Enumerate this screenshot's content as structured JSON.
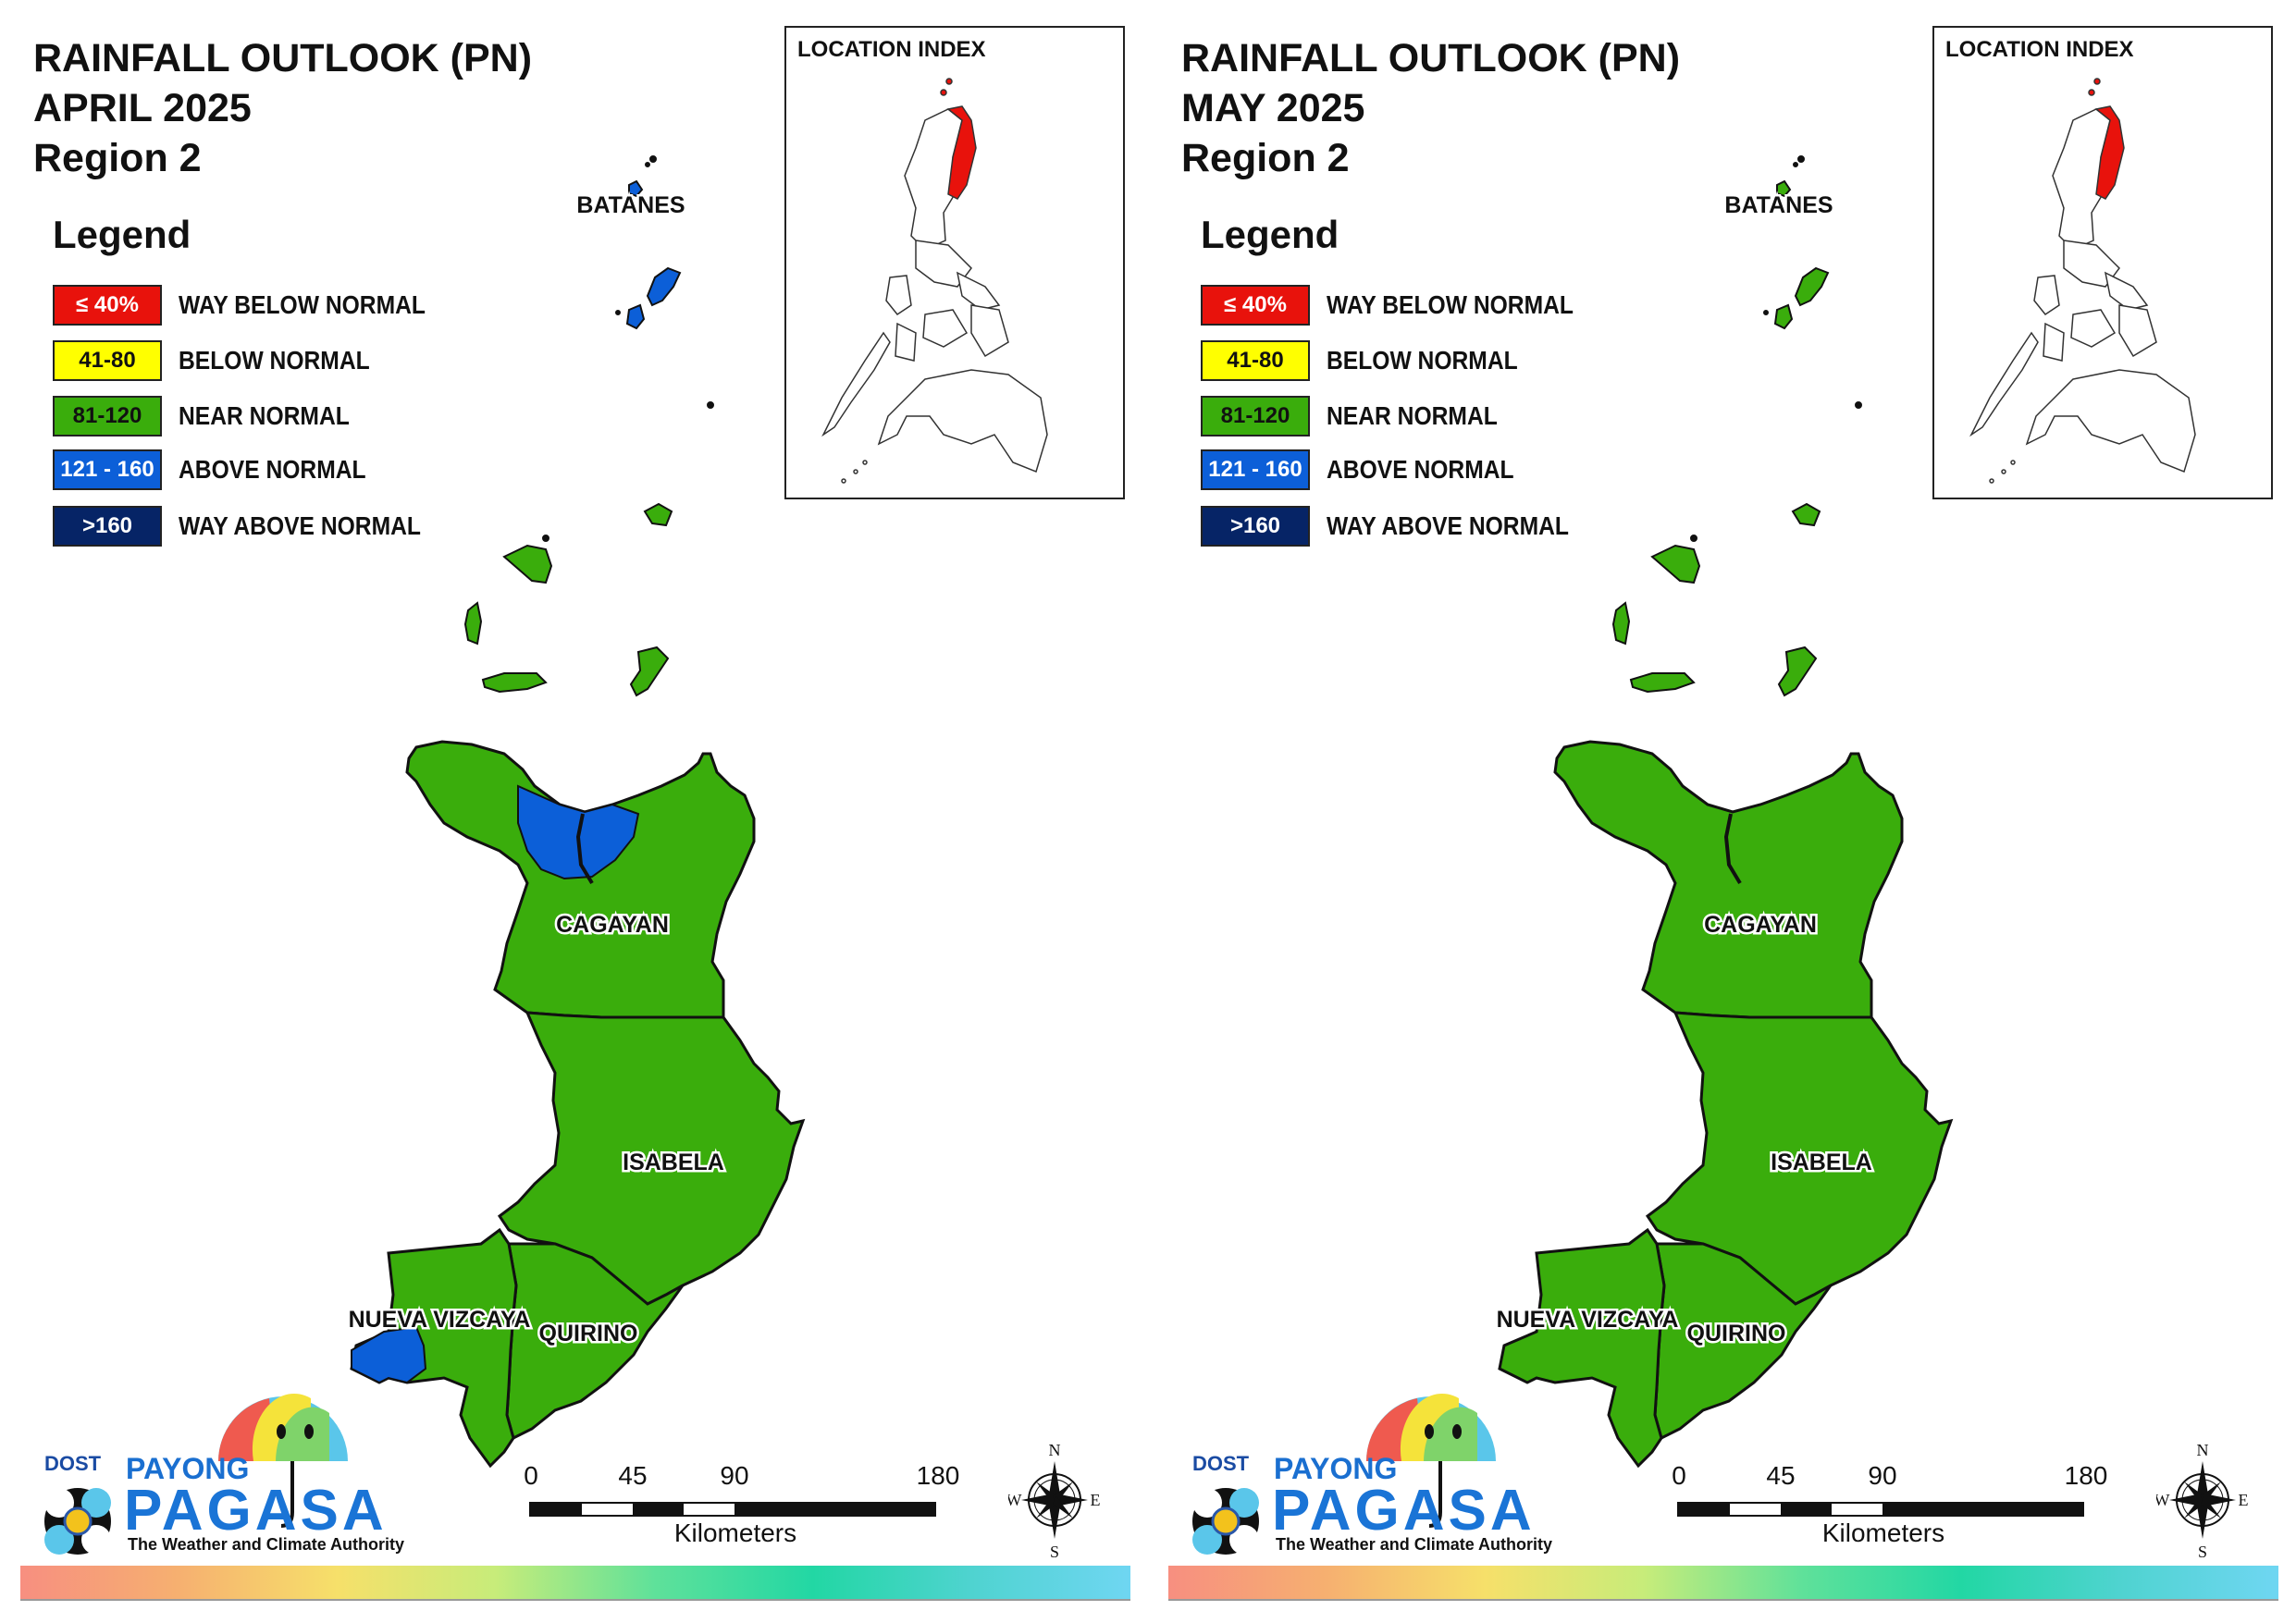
{
  "panels": [
    {
      "title": {
        "line1": "RAINFALL OUTLOOK (PN)",
        "line2": "APRIL 2025",
        "line3": "Region 2"
      },
      "provinces": {
        "batanes": {
          "name": "BATANES",
          "category": "above_normal"
        },
        "cagayan": {
          "name": "CAGAYAN",
          "category": "near_normal",
          "has_above_normal_patch": true
        },
        "isabela": {
          "name": "ISABELA",
          "category": "near_normal"
        },
        "nueva_vizcaya": {
          "name": "NUEVA VIZCAYA",
          "category": "near_normal",
          "has_above_normal_patch": true
        },
        "quirino": {
          "name": "QUIRINO",
          "category": "near_normal"
        }
      }
    },
    {
      "title": {
        "line1": "RAINFALL OUTLOOK (PN)",
        "line2": "MAY 2025",
        "line3": "Region 2"
      },
      "provinces": {
        "batanes": {
          "name": "BATANES",
          "category": "near_normal"
        },
        "cagayan": {
          "name": "CAGAYAN",
          "category": "near_normal",
          "has_above_normal_patch": false
        },
        "isabela": {
          "name": "ISABELA",
          "category": "near_normal"
        },
        "nueva_vizcaya": {
          "name": "NUEVA VIZCAYA",
          "category": "near_normal",
          "has_above_normal_patch": false
        },
        "quirino": {
          "name": "QUIRINO",
          "category": "near_normal"
        }
      }
    }
  ],
  "legend": {
    "title": "Legend",
    "items": [
      {
        "range": "≤ 40%",
        "label": "WAY BELOW NORMAL",
        "color": "#e8120c",
        "text_color": "#ffffff"
      },
      {
        "range": "41-80",
        "label": "BELOW NORMAL",
        "color": "#ffff00",
        "text_color": "#111111"
      },
      {
        "range": "81-120",
        "label": "NEAR NORMAL",
        "color": "#3aad0c",
        "text_color": "#111111"
      },
      {
        "range": "121 - 160",
        "label": "ABOVE NORMAL",
        "color": "#0c5fd8",
        "text_color": "#ffffff"
      },
      {
        "range": ">160",
        "label": "WAY ABOVE NORMAL",
        "color": "#062466",
        "text_color": "#ffffff"
      }
    ]
  },
  "location_index": {
    "label": "LOCATION INDEX",
    "highlight_color": "#e8120c"
  },
  "scale_bar": {
    "ticks": [
      "0",
      "45",
      "90",
      "180"
    ],
    "unit": "Kilometers"
  },
  "compass": {
    "n": "N",
    "s": "S",
    "e": "E",
    "w": "W"
  },
  "logo": {
    "dost": "DOST",
    "payong": "PAYONG",
    "pagasa": "PAGASA",
    "tagline": "The Weather and Climate Authority"
  },
  "colors": {
    "near_normal": "#3aad0c",
    "above_normal": "#0c5fd8",
    "outline": "#111111"
  }
}
